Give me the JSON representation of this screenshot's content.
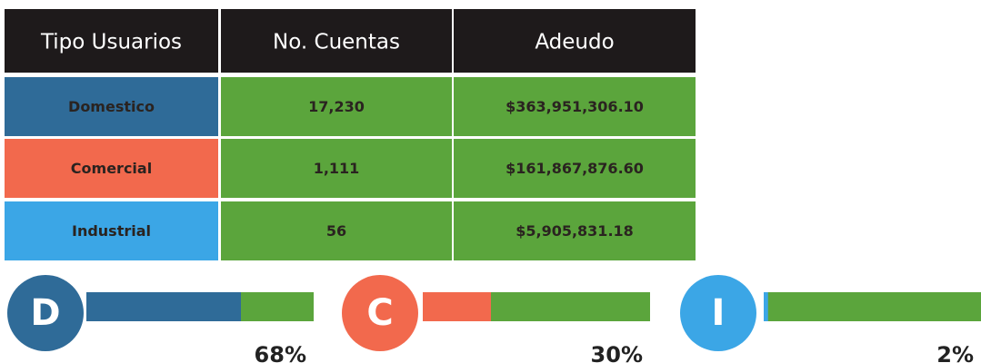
{
  "table": {
    "header": [
      "Tipo Usuarios",
      "No. Cuentas",
      "Adeudo"
    ],
    "rows": [
      [
        "Domestico",
        "17,230",
        "$363,951,306.10"
      ],
      [
        "Comercial",
        "1,111",
        "$161,867,876.60"
      ],
      [
        "Industrial",
        "56",
        "$5,905,831.18"
      ]
    ],
    "row_colors": [
      "#2f6b98",
      "#f2694d",
      "#3ba6e6"
    ],
    "cell_color": "#5ba53c",
    "header_color": "#1e1a1b"
  },
  "bars": [
    {
      "letter": "D",
      "value": 68,
      "value_label": "68%",
      "color": "#2f6b98"
    },
    {
      "letter": "C",
      "value": 30,
      "value_label": "30%",
      "color": "#f2694d"
    },
    {
      "letter": "I",
      "value": 2,
      "value_label": "2%",
      "color": "#3ba6e6"
    }
  ],
  "bar_track_color": "#5ba53c"
}
